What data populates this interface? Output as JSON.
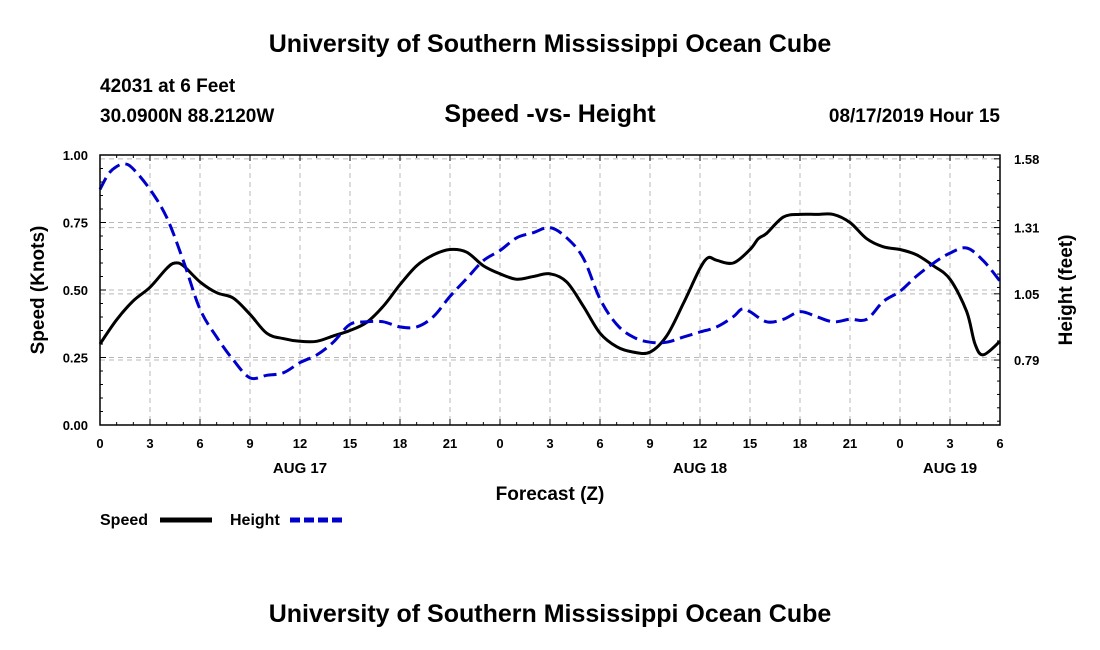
{
  "header": {
    "title": "University of Southern Mississippi Ocean Cube",
    "station": "42031 at 6 Feet",
    "coords": "30.0900N 88.2120W",
    "subtitle": "Speed -vs- Height",
    "datetime": "08/17/2019 Hour 15"
  },
  "footer": {
    "title": "University of Southern Mississippi Ocean Cube"
  },
  "chart_data": {
    "type": "line",
    "title": "Speed -vs- Height",
    "xlabel": "Forecast (Z)",
    "ylabel": "Speed (Knots)",
    "y2label": "Height (feet)",
    "xlim": [
      0,
      54
    ],
    "ylim": [
      0,
      1
    ],
    "y2lim": [
      0.535,
      1.595
    ],
    "grid": true,
    "x_ticks": [
      0,
      3,
      6,
      9,
      12,
      15,
      18,
      21,
      24,
      27,
      30,
      33,
      36,
      39,
      42,
      45,
      48,
      51,
      54
    ],
    "x_tick_labels": [
      "0",
      "3",
      "6",
      "9",
      "12",
      "15",
      "18",
      "21",
      "0",
      "3",
      "6",
      "9",
      "12",
      "15",
      "18",
      "21",
      "0",
      "3",
      "6"
    ],
    "date_labels": [
      {
        "x": 12,
        "label": "AUG 17"
      },
      {
        "x": 36,
        "label": "AUG 18"
      },
      {
        "x": 51,
        "label": "AUG 19"
      }
    ],
    "y_ticks": [
      0,
      0.25,
      0.5,
      0.75,
      1.0
    ],
    "y_tick_labels": [
      "0.00",
      "0.25",
      "0.50",
      "0.75",
      "1.00"
    ],
    "y2_ticks": [
      0.79,
      1.05,
      1.31,
      1.58
    ],
    "y2_tick_labels": [
      "0.79",
      "1.05",
      "1.31",
      "1.58"
    ],
    "series": [
      {
        "name": "Speed",
        "axis": "left",
        "color": "#000000",
        "dash": "solid",
        "x": [
          0,
          1,
          2,
          3,
          4,
          4.5,
          5,
          6,
          7,
          8,
          9,
          10,
          11,
          12,
          13,
          14,
          15,
          16,
          17,
          18,
          19,
          20,
          21,
          22,
          23,
          24,
          25,
          26,
          27,
          28,
          29,
          30,
          31,
          32,
          33,
          34,
          35,
          36,
          36.5,
          37,
          38,
          39,
          39.5,
          40,
          41,
          42,
          43,
          44,
          45,
          46,
          47,
          48,
          49,
          50,
          51,
          52,
          52.5,
          53,
          54
        ],
        "values": [
          0.3,
          0.39,
          0.46,
          0.51,
          0.58,
          0.6,
          0.59,
          0.53,
          0.49,
          0.47,
          0.41,
          0.34,
          0.32,
          0.31,
          0.31,
          0.33,
          0.35,
          0.38,
          0.44,
          0.52,
          0.59,
          0.63,
          0.65,
          0.64,
          0.59,
          0.56,
          0.54,
          0.55,
          0.56,
          0.53,
          0.44,
          0.34,
          0.29,
          0.27,
          0.27,
          0.33,
          0.45,
          0.58,
          0.62,
          0.61,
          0.6,
          0.65,
          0.69,
          0.71,
          0.77,
          0.78,
          0.78,
          0.78,
          0.75,
          0.69,
          0.66,
          0.65,
          0.63,
          0.59,
          0.54,
          0.42,
          0.3,
          0.26,
          0.31
        ]
      },
      {
        "name": "Height",
        "axis": "right",
        "color": "#0000cc",
        "dash": "dashed",
        "x": [
          0,
          0.5,
          1,
          1.5,
          2,
          3,
          4,
          5,
          6,
          7,
          8,
          9,
          10,
          11,
          12,
          13,
          14,
          15,
          16,
          17,
          18,
          19,
          20,
          21,
          22,
          23,
          24,
          25,
          26,
          27,
          28,
          29,
          30,
          31,
          32,
          33,
          34,
          35,
          36,
          37,
          38,
          38.5,
          39,
          40,
          41,
          42,
          43,
          44,
          45,
          46,
          47,
          48,
          49,
          50,
          51,
          52,
          53,
          54
        ],
        "values": [
          1.46,
          1.52,
          1.55,
          1.56,
          1.54,
          1.46,
          1.35,
          1.18,
          0.99,
          0.88,
          0.79,
          0.72,
          0.73,
          0.74,
          0.78,
          0.81,
          0.86,
          0.93,
          0.94,
          0.94,
          0.92,
          0.92,
          0.96,
          1.04,
          1.11,
          1.18,
          1.22,
          1.27,
          1.29,
          1.31,
          1.27,
          1.19,
          1.03,
          0.93,
          0.88,
          0.86,
          0.86,
          0.88,
          0.9,
          0.92,
          0.96,
          0.99,
          0.98,
          0.94,
          0.95,
          0.98,
          0.96,
          0.94,
          0.95,
          0.95,
          1.02,
          1.06,
          1.12,
          1.17,
          1.21,
          1.23,
          1.18,
          1.1
        ]
      }
    ],
    "legend": {
      "position": "bottom-left",
      "entries": [
        "Speed",
        "Height"
      ]
    }
  }
}
